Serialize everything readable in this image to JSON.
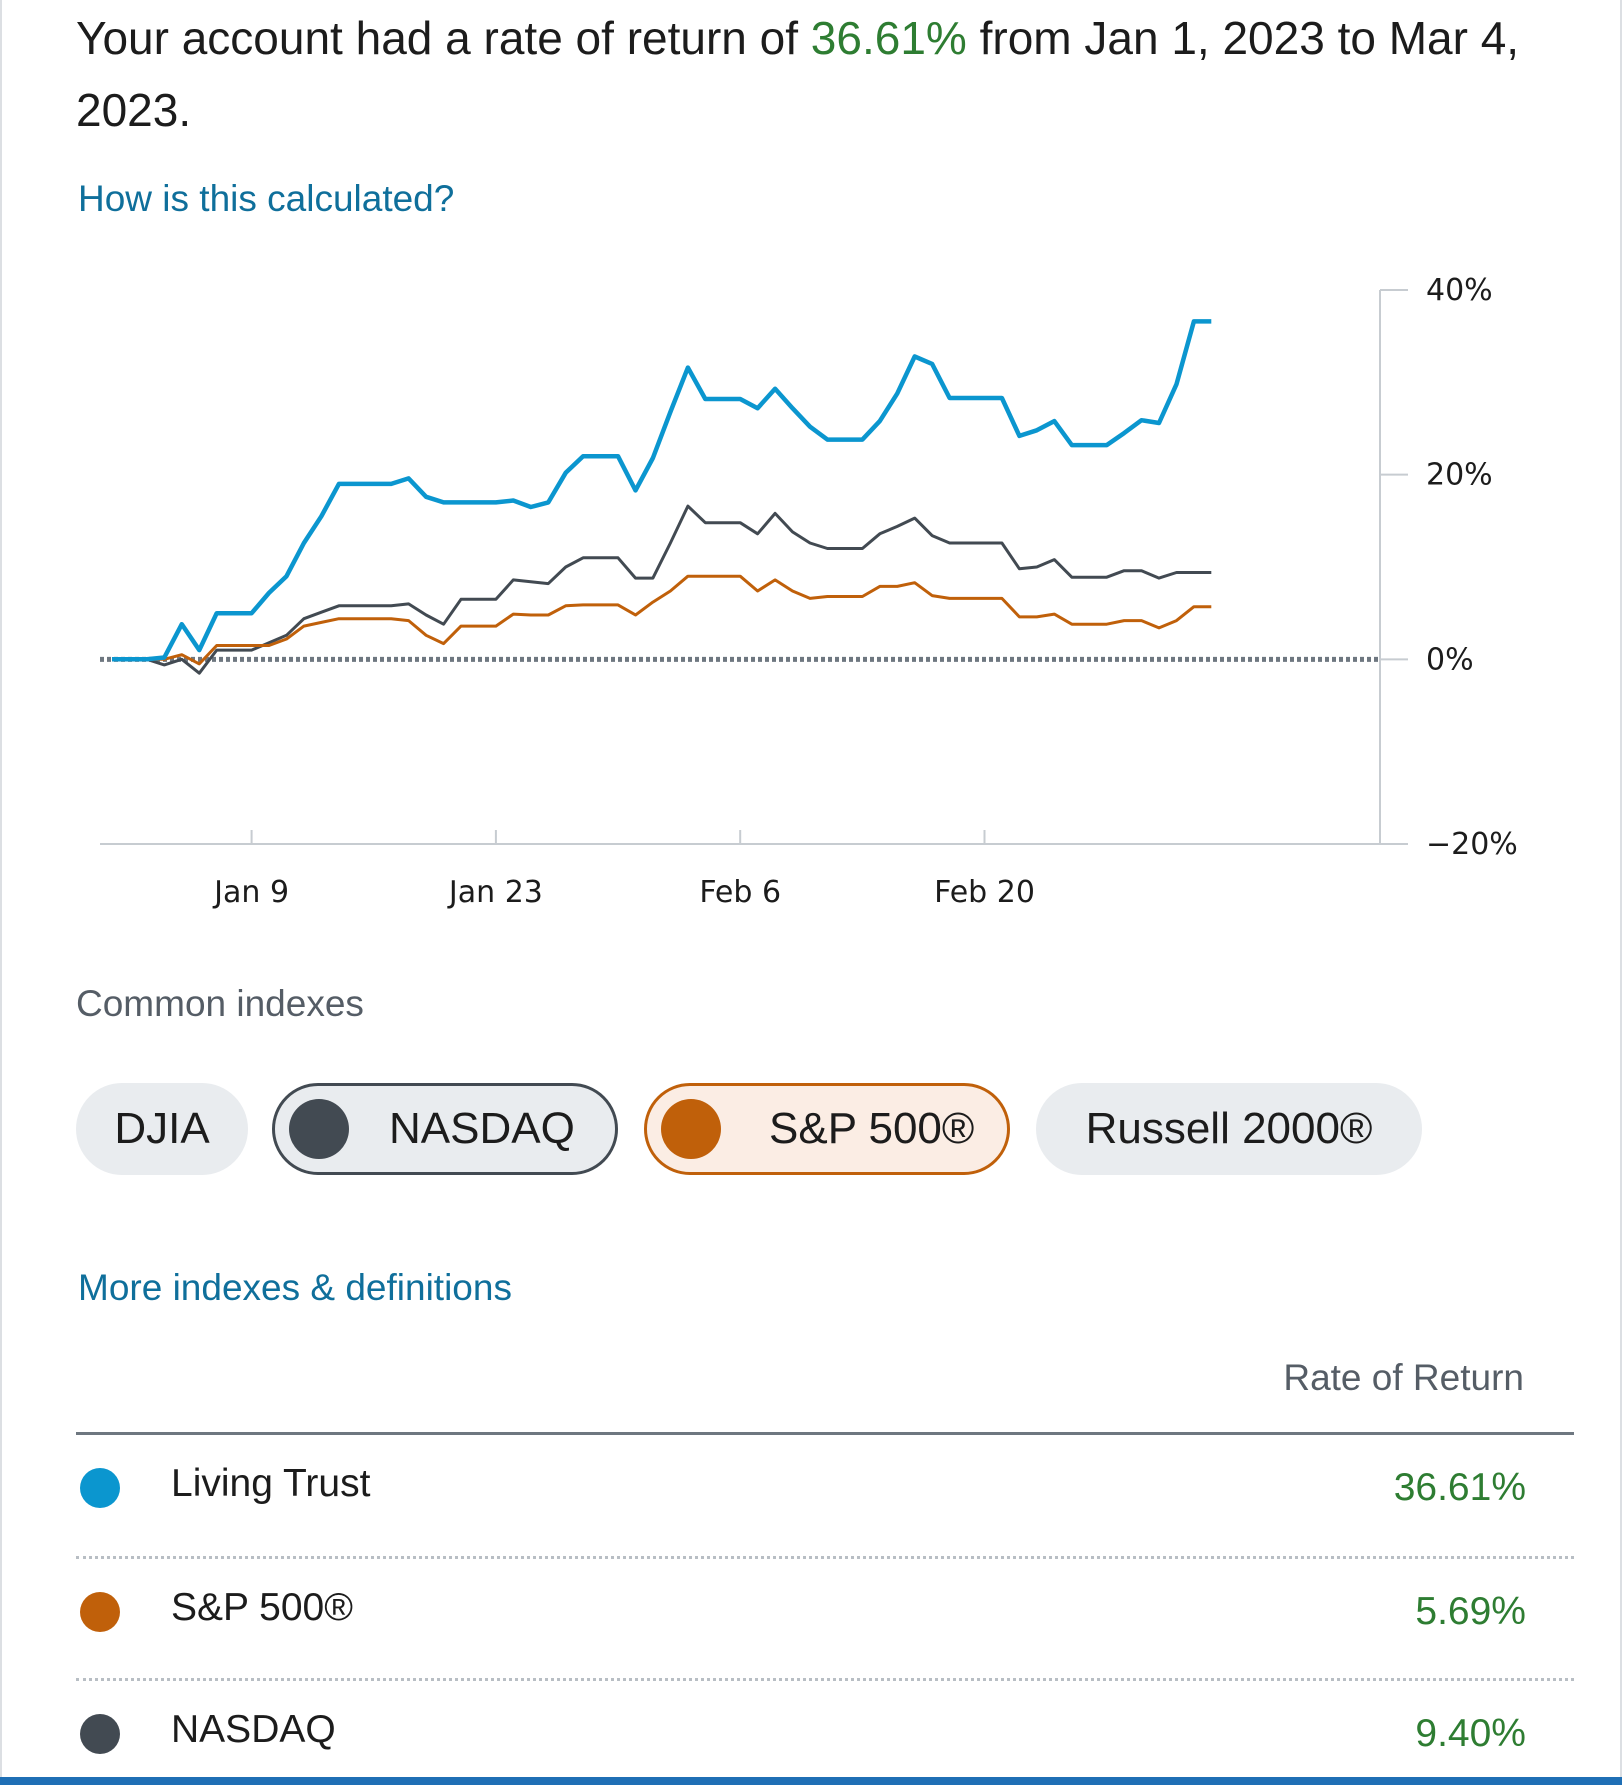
{
  "headline": {
    "prefix": "Your account had a rate of return of ",
    "rate": "36.61%",
    "suffix": " from Jan 1, 2023 to Mar 4, 2023."
  },
  "links": {
    "how_calculated": "How is this calculated?",
    "more_indexes": "More indexes & definitions"
  },
  "colors": {
    "account": "#0b96cf",
    "sp500": "#c0600a",
    "nasdaq": "#424a52",
    "positive": "#2e7d32",
    "link": "#0f6f9b"
  },
  "chart_data": {
    "type": "line",
    "x_ticks": [
      "Jan 9",
      "Jan 23",
      "Feb 6",
      "Feb 20"
    ],
    "y_ticks": [
      "40%",
      "20%",
      "0%",
      "−20%"
    ],
    "ylim": [
      -20,
      40
    ],
    "x_start": "Jan 1",
    "series": [
      {
        "name": "Living Trust",
        "color": "#0b96cf",
        "points": [
          [
            "Jan 1",
            0
          ],
          [
            "Jan 2",
            0
          ],
          [
            "Jan 3",
            0
          ],
          [
            "Jan 4",
            0.2
          ],
          [
            "Jan 5",
            3.8
          ],
          [
            "Jan 6",
            1
          ],
          [
            "Jan 7",
            5
          ],
          [
            "Jan 8",
            5
          ],
          [
            "Jan 9",
            5
          ],
          [
            "Jan 10",
            7.2
          ],
          [
            "Jan 11",
            9
          ],
          [
            "Jan 12",
            12.6
          ],
          [
            "Jan 13",
            15.5
          ],
          [
            "Jan 14",
            19
          ],
          [
            "Jan 15",
            19
          ],
          [
            "Jan 16",
            19
          ],
          [
            "Jan 17",
            19
          ],
          [
            "Jan 18",
            19.6
          ],
          [
            "Jan 19",
            17.6
          ],
          [
            "Jan 20",
            17
          ],
          [
            "Jan 21",
            17
          ],
          [
            "Jan 22",
            17
          ],
          [
            "Jan 23",
            17
          ],
          [
            "Jan 24",
            17.2
          ],
          [
            "Jan 25",
            16.5
          ],
          [
            "Jan 26",
            17
          ],
          [
            "Jan 27",
            20.2
          ],
          [
            "Jan 28",
            22
          ],
          [
            "Jan 29",
            22
          ],
          [
            "Jan 30",
            22
          ],
          [
            "Jan 31",
            18.3
          ],
          [
            "Feb 1",
            21.8
          ],
          [
            "Feb 2",
            26.8
          ],
          [
            "Feb 3",
            31.6
          ],
          [
            "Feb 4",
            28.2
          ],
          [
            "Feb 5",
            28.2
          ],
          [
            "Feb 6",
            28.2
          ],
          [
            "Feb 7",
            27.2
          ],
          [
            "Feb 8",
            29.3
          ],
          [
            "Feb 9",
            27.2
          ],
          [
            "Feb 10",
            25.2
          ],
          [
            "Feb 11",
            23.8
          ],
          [
            "Feb 12",
            23.8
          ],
          [
            "Feb 13",
            23.8
          ],
          [
            "Feb 14",
            25.8
          ],
          [
            "Feb 15",
            28.8
          ],
          [
            "Feb 16",
            32.8
          ],
          [
            "Feb 17",
            32
          ],
          [
            "Feb 18",
            28.3
          ],
          [
            "Feb 19",
            28.3
          ],
          [
            "Feb 20",
            28.3
          ],
          [
            "Feb 21",
            28.3
          ],
          [
            "Feb 22",
            24.2
          ],
          [
            "Feb 23",
            24.8
          ],
          [
            "Feb 24",
            25.8
          ],
          [
            "Feb 25",
            23.2
          ],
          [
            "Feb 26",
            23.2
          ],
          [
            "Feb 27",
            23.2
          ],
          [
            "Feb 28",
            24.5
          ],
          [
            "Mar 1",
            25.9
          ],
          [
            "Mar 2",
            25.6
          ],
          [
            "Mar 3",
            29.8
          ],
          [
            "Mar 4",
            36.6
          ],
          [
            "Mar 5",
            36.6
          ]
        ]
      },
      {
        "name": "NASDAQ",
        "color": "#424a52",
        "points": [
          [
            "Jan 1",
            0
          ],
          [
            "Jan 2",
            0
          ],
          [
            "Jan 3",
            0
          ],
          [
            "Jan 4",
            -0.6
          ],
          [
            "Jan 5",
            0
          ],
          [
            "Jan 6",
            -1.5
          ],
          [
            "Jan 7",
            1
          ],
          [
            "Jan 8",
            1
          ],
          [
            "Jan 9",
            1
          ],
          [
            "Jan 10",
            1.8
          ],
          [
            "Jan 11",
            2.6
          ],
          [
            "Jan 12",
            4.4
          ],
          [
            "Jan 13",
            5.1
          ],
          [
            "Jan 14",
            5.8
          ],
          [
            "Jan 15",
            5.8
          ],
          [
            "Jan 16",
            5.8
          ],
          [
            "Jan 17",
            5.8
          ],
          [
            "Jan 18",
            6
          ],
          [
            "Jan 19",
            4.8
          ],
          [
            "Jan 20",
            3.8
          ],
          [
            "Jan 21",
            6.5
          ],
          [
            "Jan 22",
            6.5
          ],
          [
            "Jan 23",
            6.5
          ],
          [
            "Jan 24",
            8.6
          ],
          [
            "Jan 25",
            8.4
          ],
          [
            "Jan 26",
            8.2
          ],
          [
            "Jan 27",
            10
          ],
          [
            "Jan 28",
            11
          ],
          [
            "Jan 29",
            11
          ],
          [
            "Jan 30",
            11
          ],
          [
            "Jan 31",
            8.8
          ],
          [
            "Feb 1",
            8.8
          ],
          [
            "Feb 2",
            12.6
          ],
          [
            "Feb 3",
            16.6
          ],
          [
            "Feb 4",
            14.8
          ],
          [
            "Feb 5",
            14.8
          ],
          [
            "Feb 6",
            14.8
          ],
          [
            "Feb 7",
            13.6
          ],
          [
            "Feb 8",
            15.8
          ],
          [
            "Feb 9",
            13.8
          ],
          [
            "Feb 10",
            12.6
          ],
          [
            "Feb 11",
            12
          ],
          [
            "Feb 12",
            12
          ],
          [
            "Feb 13",
            12
          ],
          [
            "Feb 14",
            13.6
          ],
          [
            "Feb 15",
            14.4
          ],
          [
            "Feb 16",
            15.3
          ],
          [
            "Feb 17",
            13.4
          ],
          [
            "Feb 18",
            12.6
          ],
          [
            "Feb 19",
            12.6
          ],
          [
            "Feb 20",
            12.6
          ],
          [
            "Feb 21",
            12.6
          ],
          [
            "Feb 22",
            9.8
          ],
          [
            "Feb 23",
            10
          ],
          [
            "Feb 24",
            10.8
          ],
          [
            "Feb 25",
            8.9
          ],
          [
            "Feb 26",
            8.9
          ],
          [
            "Feb 27",
            8.9
          ],
          [
            "Feb 28",
            9.6
          ],
          [
            "Mar 1",
            9.6
          ],
          [
            "Mar 2",
            8.8
          ],
          [
            "Mar 3",
            9.4
          ],
          [
            "Mar 4",
            9.4
          ],
          [
            "Mar 5",
            9.4
          ]
        ]
      },
      {
        "name": "S&P 500®",
        "color": "#c0600a",
        "points": [
          [
            "Jan 1",
            0
          ],
          [
            "Jan 2",
            0
          ],
          [
            "Jan 3",
            0
          ],
          [
            "Jan 4",
            0
          ],
          [
            "Jan 5",
            0.5
          ],
          [
            "Jan 6",
            -0.5
          ],
          [
            "Jan 7",
            1.5
          ],
          [
            "Jan 8",
            1.5
          ],
          [
            "Jan 9",
            1.5
          ],
          [
            "Jan 10",
            1.5
          ],
          [
            "Jan 11",
            2.2
          ],
          [
            "Jan 12",
            3.6
          ],
          [
            "Jan 13",
            4
          ],
          [
            "Jan 14",
            4.4
          ],
          [
            "Jan 15",
            4.4
          ],
          [
            "Jan 16",
            4.4
          ],
          [
            "Jan 17",
            4.4
          ],
          [
            "Jan 18",
            4.2
          ],
          [
            "Jan 19",
            2.6
          ],
          [
            "Jan 20",
            1.7
          ],
          [
            "Jan 21",
            3.6
          ],
          [
            "Jan 22",
            3.6
          ],
          [
            "Jan 23",
            3.6
          ],
          [
            "Jan 24",
            4.9
          ],
          [
            "Jan 25",
            4.8
          ],
          [
            "Jan 26",
            4.8
          ],
          [
            "Jan 27",
            5.8
          ],
          [
            "Jan 28",
            5.9
          ],
          [
            "Jan 29",
            5.9
          ],
          [
            "Jan 30",
            5.9
          ],
          [
            "Jan 31",
            4.8
          ],
          [
            "Feb 1",
            6.2
          ],
          [
            "Feb 2",
            7.4
          ],
          [
            "Feb 3",
            9
          ],
          [
            "Feb 4",
            9
          ],
          [
            "Feb 5",
            9
          ],
          [
            "Feb 6",
            9
          ],
          [
            "Feb 7",
            7.4
          ],
          [
            "Feb 8",
            8.6
          ],
          [
            "Feb 9",
            7.4
          ],
          [
            "Feb 10",
            6.6
          ],
          [
            "Feb 11",
            6.8
          ],
          [
            "Feb 12",
            6.8
          ],
          [
            "Feb 13",
            6.8
          ],
          [
            "Feb 14",
            7.9
          ],
          [
            "Feb 15",
            7.9
          ],
          [
            "Feb 16",
            8.3
          ],
          [
            "Feb 17",
            6.9
          ],
          [
            "Feb 18",
            6.6
          ],
          [
            "Feb 19",
            6.6
          ],
          [
            "Feb 20",
            6.6
          ],
          [
            "Feb 21",
            6.6
          ],
          [
            "Feb 22",
            4.6
          ],
          [
            "Feb 23",
            4.6
          ],
          [
            "Feb 24",
            4.9
          ],
          [
            "Feb 25",
            3.8
          ],
          [
            "Feb 26",
            3.8
          ],
          [
            "Feb 27",
            3.8
          ],
          [
            "Feb 28",
            4.2
          ],
          [
            "Mar 1",
            4.2
          ],
          [
            "Mar 2",
            3.4
          ],
          [
            "Mar 3",
            4.2
          ],
          [
            "Mar 4",
            5.7
          ],
          [
            "Mar 5",
            5.7
          ]
        ]
      }
    ],
    "zero_line": "dotted",
    "grid": false
  },
  "common_indexes_label": "Common indexes",
  "chips": {
    "djia": "DJIA",
    "nasdaq": "NASDAQ",
    "sp500": "S&P 500®",
    "russell": "Russell 2000®"
  },
  "table": {
    "header": "Rate of Return",
    "rows": [
      {
        "name": "Living Trust",
        "value": "36.61%",
        "color": "#0b96cf"
      },
      {
        "name": "S&P 500®",
        "value": "5.69%",
        "color": "#c0600a"
      },
      {
        "name": "NASDAQ",
        "value": "9.40%",
        "color": "#424a52"
      }
    ]
  }
}
